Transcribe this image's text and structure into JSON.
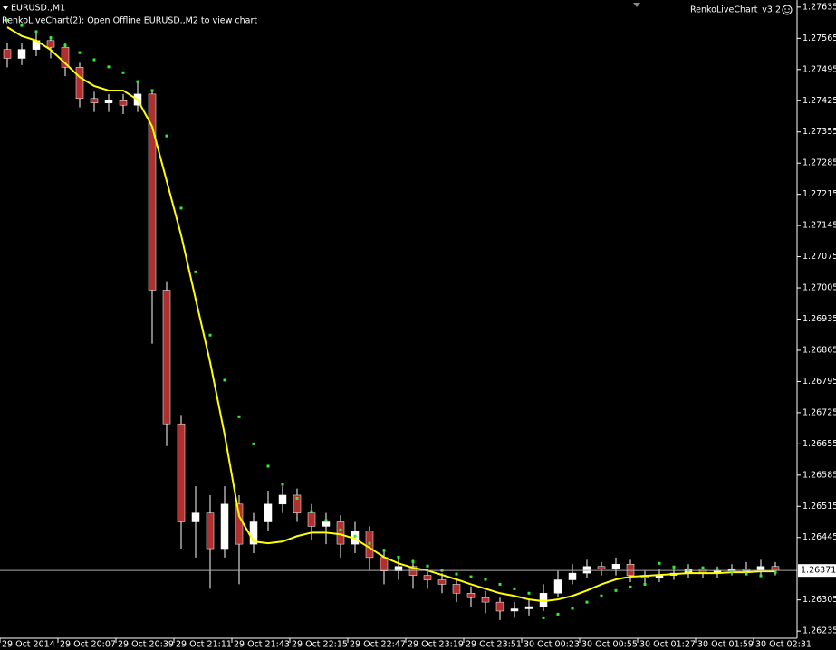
{
  "chart_data": {
    "type": "candlestick",
    "title": "EURUSD.,M1",
    "subtitle": "RenkoLiveChart(2): Open Offline EURUSD.,M2 to view chart",
    "indicator_label": "RenkoLiveChart_v3.2",
    "background": "#000000",
    "up_color": "#ffffff",
    "down_color": "#b03030",
    "wick_color": "#ffffff",
    "open": [
      1.2754,
      1.2752,
      1.2754,
      1.2756,
      1.27545,
      1.275,
      1.2743,
      1.2742,
      1.27425,
      1.27415,
      1.2744,
      1.27,
      1.267,
      1.2648,
      1.265,
      1.2642,
      1.2652,
      1.2643,
      1.2648,
      1.2652,
      1.2654,
      1.265,
      1.2647,
      1.2648,
      1.2643,
      1.2646,
      1.264,
      1.2637,
      1.2638,
      1.2636,
      1.2635,
      1.2634,
      1.2632,
      1.2631,
      1.263,
      1.2628,
      1.26285,
      1.2629,
      1.2632,
      1.2635,
      1.26365,
      1.2638,
      1.26375,
      1.26385,
      1.2636,
      1.26355,
      1.2636,
      1.26365,
      1.26375,
      1.26365,
      1.2637,
      1.26375,
      1.2637,
      1.2638
    ],
    "high": [
      1.27555,
      1.27555,
      1.2758,
      1.2757,
      1.27555,
      1.2751,
      1.27445,
      1.2744,
      1.2744,
      1.2747,
      1.2745,
      1.2702,
      1.2672,
      1.2656,
      1.2654,
      1.2656,
      1.2654,
      1.265,
      1.2655,
      1.2656,
      1.26555,
      1.2652,
      1.265,
      1.26495,
      1.2648,
      1.2647,
      1.2642,
      1.264,
      1.26395,
      1.26375,
      1.26365,
      1.26355,
      1.26335,
      1.26325,
      1.2631,
      1.263,
      1.26305,
      1.2634,
      1.2637,
      1.26385,
      1.26395,
      1.2639,
      1.264,
      1.26395,
      1.2637,
      1.26375,
      1.2638,
      1.26385,
      1.2638,
      1.2638,
      1.26385,
      1.2639,
      1.26395,
      1.2639
    ],
    "low": [
      1.275,
      1.27505,
      1.27525,
      1.2752,
      1.2748,
      1.2741,
      1.274,
      1.274,
      1.27395,
      1.274,
      1.2688,
      1.2665,
      1.2642,
      1.264,
      1.2633,
      1.264,
      1.2634,
      1.2641,
      1.2646,
      1.265,
      1.2648,
      1.2644,
      1.2643,
      1.264,
      1.2641,
      1.2637,
      1.2634,
      1.2635,
      1.2633,
      1.2633,
      1.2632,
      1.263,
      1.2629,
      1.26275,
      1.2626,
      1.26265,
      1.2627,
      1.2628,
      1.2631,
      1.2634,
      1.26355,
      1.2636,
      1.2636,
      1.26345,
      1.2634,
      1.26345,
      1.2635,
      1.26355,
      1.26355,
      1.26355,
      1.2636,
      1.2636,
      1.2636,
      1.2636
    ],
    "close": [
      1.2752,
      1.2754,
      1.2756,
      1.27545,
      1.275,
      1.2743,
      1.2742,
      1.27425,
      1.27415,
      1.2744,
      1.27,
      1.267,
      1.2648,
      1.265,
      1.2642,
      1.2652,
      1.2643,
      1.2648,
      1.2652,
      1.2654,
      1.265,
      1.2647,
      1.2648,
      1.2643,
      1.2646,
      1.264,
      1.2637,
      1.2638,
      1.2636,
      1.2635,
      1.2634,
      1.2632,
      1.2631,
      1.263,
      1.2628,
      1.26285,
      1.2629,
      1.2632,
      1.2635,
      1.26365,
      1.2638,
      1.26375,
      1.26385,
      1.2636,
      1.26355,
      1.2636,
      1.26365,
      1.26375,
      1.26365,
      1.2637,
      1.26375,
      1.2637,
      1.2638,
      1.26371
    ],
    "overlays": [
      {
        "type": "line",
        "color": "#ffff00",
        "values": [
          1.2759,
          1.2757,
          1.2756,
          1.27539,
          1.27509,
          1.27478,
          1.27458,
          1.27448,
          1.27448,
          1.27427,
          1.27367,
          1.27245,
          1.27123,
          1.2698,
          1.26838,
          1.26676,
          1.26493,
          1.26436,
          1.26432,
          1.26436,
          1.26448,
          1.26456,
          1.26456,
          1.26452,
          1.26442,
          1.26422,
          1.26401,
          1.26387,
          1.26377,
          1.26371,
          1.26361,
          1.26351,
          1.2634,
          1.2633,
          1.2632,
          1.26314,
          1.26306,
          1.26302,
          1.26306,
          1.26314,
          1.26326,
          1.2634,
          1.26351,
          1.26357,
          1.26359,
          1.26361,
          1.26363,
          1.26365,
          1.26365,
          1.26365,
          1.26367,
          1.26367,
          1.26369,
          1.26369
        ]
      },
      {
        "type": "dots",
        "color": "#33ee33",
        "values": [
          1.27606,
          1.27594,
          1.2758,
          1.27566,
          1.27549,
          1.27533,
          1.27517,
          1.27501,
          1.27488,
          1.27468,
          1.27448,
          1.27346,
          1.27184,
          1.27041,
          1.26899,
          1.26798,
          1.26716,
          1.26655,
          1.26605,
          1.26564,
          1.26533,
          1.26503,
          1.26483,
          1.26462,
          1.26448,
          1.26432,
          1.26416,
          1.26401,
          1.26391,
          1.26381,
          1.26371,
          1.26363,
          1.26357,
          1.26351,
          1.2634,
          1.2633,
          1.2632,
          1.26265,
          1.26273,
          1.26286,
          1.263,
          1.26314,
          1.26326,
          1.26334,
          1.2634,
          1.26387,
          1.26379,
          1.26371,
          1.26377,
          1.26373,
          1.26369,
          1.26363,
          1.26359,
          1.26367
        ]
      }
    ],
    "current_price": 1.26371,
    "xlim": [
      -0.5,
      54.5
    ],
    "xticks": [
      {
        "value": -0.5,
        "label": "29 Oct 2014"
      },
      {
        "value": 3.5,
        "label": "29 Oct 20:07"
      },
      {
        "value": 7.5,
        "label": "29 Oct 20:39"
      },
      {
        "value": 11.5,
        "label": "29 Oct 21:11"
      },
      {
        "value": 15.5,
        "label": "29 Oct 21:43"
      },
      {
        "value": 19.5,
        "label": "29 Oct 22:15"
      },
      {
        "value": 23.5,
        "label": "29 Oct 22:47"
      },
      {
        "value": 27.5,
        "label": "29 Oct 23:19"
      },
      {
        "value": 31.5,
        "label": "29 Oct 23:51"
      },
      {
        "value": 35.5,
        "label": "30 Oct 00:23"
      },
      {
        "value": 39.5,
        "label": "30 Oct 00:55"
      },
      {
        "value": 43.5,
        "label": "30 Oct 01:27"
      },
      {
        "value": 47.5,
        "label": "30 Oct 01:59"
      },
      {
        "value": 51.5,
        "label": "30 Oct 02:31"
      }
    ],
    "ylim": [
      1.26219,
      1.27651
    ],
    "yticks": [
      1.27635,
      1.27565,
      1.27495,
      1.27425,
      1.27355,
      1.27285,
      1.27215,
      1.27145,
      1.27075,
      1.27005,
      1.26935,
      1.26865,
      1.26795,
      1.26725,
      1.26655,
      1.26585,
      1.26515,
      1.26445,
      1.26305,
      1.26235
    ],
    "grid": false
  }
}
